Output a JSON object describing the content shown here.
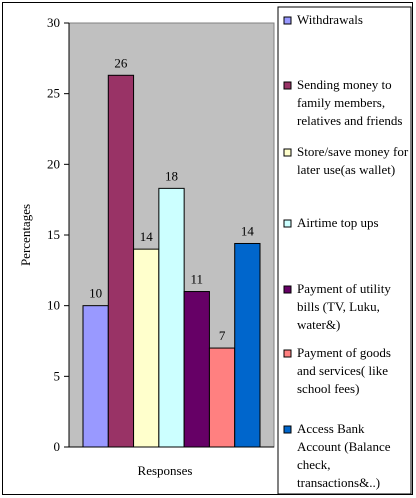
{
  "chart_data": {
    "type": "bar",
    "title": "",
    "xlabel": "Responses",
    "ylabel": "Percentages",
    "ylim": [
      0,
      30
    ],
    "yticks": [
      0,
      5,
      10,
      15,
      20,
      25,
      30
    ],
    "grid": false,
    "legend_position": "right",
    "plot_background": "#c0c0c0",
    "series": [
      {
        "name": "Withdrawals",
        "value": 10,
        "label": "10",
        "color": "#9999ff"
      },
      {
        "name": "Sending money to family members, relatives and friends",
        "value": 26.3,
        "label": "26",
        "color": "#993366"
      },
      {
        "name": "Store/save money for later use(as wallet)",
        "value": 14,
        "label": "14",
        "color": "#ffffcc"
      },
      {
        "name": "Airtime top ups",
        "value": 18.3,
        "label": "18",
        "color": "#ccffff"
      },
      {
        "name": "Payment of utility bills (TV, Luku, water&)",
        "value": 11,
        "label": "11",
        "color": "#660066"
      },
      {
        "name": "Payment of goods and services( like school fees)",
        "value": 7,
        "label": "7",
        "color": "#ff8080"
      },
      {
        "name": "Access Bank Account (Balance check, transactions&..)",
        "value": 14.4,
        "label": "14",
        "color": "#0066cc"
      }
    ],
    "legend_lines": [
      [
        "Withdrawals"
      ],
      [
        "Sending money to",
        "family members,",
        "relatives and friends"
      ],
      [
        "Store/save money for",
        "later use(as wallet)"
      ],
      [
        "Airtime top ups"
      ],
      [
        "Payment of utility",
        "bills (TV, Luku,",
        "water&)"
      ],
      [
        "Payment of goods",
        "and services( like",
        "school fees)"
      ],
      [
        "Access Bank",
        "Account (Balance",
        "check,",
        "transactions&..)"
      ]
    ]
  }
}
